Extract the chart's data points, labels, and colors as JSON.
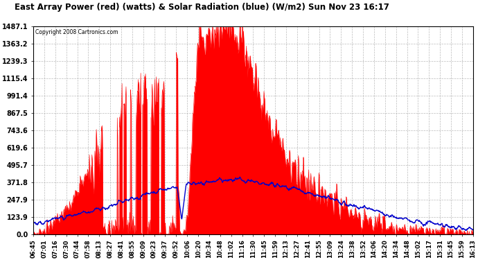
{
  "title": "East Array Power (red) (watts) & Solar Radiation (blue) (W/m2) Sun Nov 23 16:17",
  "copyright": "Copyright 2008 Cartronics.com",
  "bg_color": "#ffffff",
  "plot_bg_color": "#ffffff",
  "grid_color": "#aaaaaa",
  "red_color": "#ff0000",
  "blue_color": "#0000cc",
  "ylim": [
    0,
    1487.1
  ],
  "yticks": [
    0.0,
    123.9,
    247.9,
    371.8,
    495.7,
    619.6,
    743.6,
    867.5,
    991.4,
    1115.4,
    1239.3,
    1363.2,
    1487.1
  ],
  "xtick_labels": [
    "06:45",
    "07:01",
    "07:16",
    "07:30",
    "07:44",
    "07:58",
    "08:13",
    "08:27",
    "08:41",
    "08:55",
    "09:09",
    "09:23",
    "09:37",
    "09:52",
    "10:06",
    "10:20",
    "10:34",
    "10:48",
    "11:02",
    "11:16",
    "11:30",
    "11:45",
    "11:59",
    "12:13",
    "12:27",
    "12:41",
    "12:55",
    "13:09",
    "13:24",
    "13:38",
    "13:52",
    "14:06",
    "14:20",
    "14:34",
    "14:48",
    "15:02",
    "15:17",
    "15:31",
    "15:45",
    "15:59",
    "16:13"
  ]
}
